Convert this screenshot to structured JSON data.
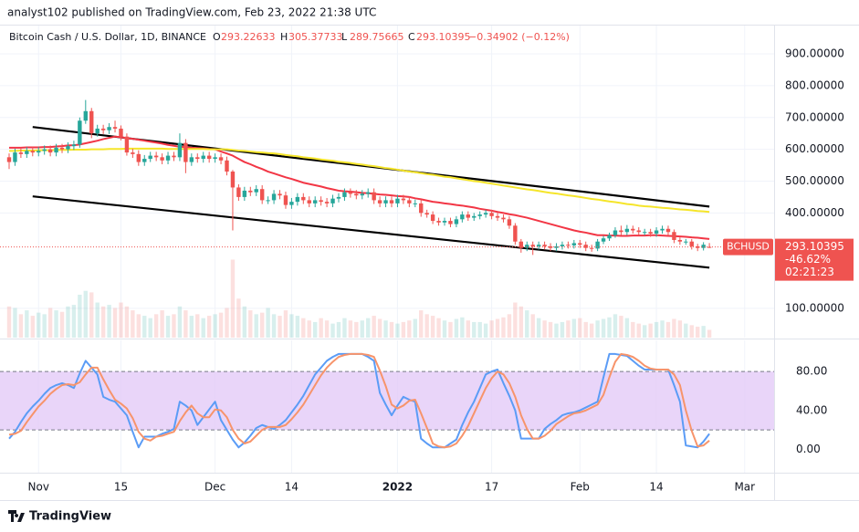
{
  "header": "analyst102 published on TradingView.com, Feb 23, 2022 21:38 UTC",
  "footer": "TradingView",
  "chart_data": [
    {
      "type": "candlestick",
      "title": "Bitcoin Cash / U.S. Dollar, 1D, BINANCE",
      "symbol": "BCHUSD",
      "ohlc_labels": [
        "O",
        "H",
        "L",
        "C"
      ],
      "change_label": "−0.34902 (−0.12%)",
      "change_percent": "-46.62%",
      "countdown": "02:21:23",
      "up_color": "#26a69a",
      "down_color": "#ef5350",
      "open": [
        575,
        560,
        590,
        585,
        595,
        590,
        595,
        600,
        590,
        605,
        600,
        610,
        615,
        690,
        720,
        650,
        665,
        660,
        670,
        665,
        640,
        590,
        585,
        560,
        570,
        580,
        575,
        565,
        580,
        575,
        620,
        560,
        575,
        570,
        580,
        570,
        575,
        565,
        530,
        480,
        450,
        470,
        465,
        475,
        440,
        440,
        460,
        455,
        425,
        435,
        450,
        440,
        430,
        440,
        435,
        430,
        445,
        450,
        465,
        460,
        455,
        460,
        465,
        440,
        430,
        440,
        430,
        445,
        440,
        430,
        430,
        400,
        395,
        375,
        370,
        375,
        365,
        380,
        395,
        385,
        390,
        395,
        400,
        390,
        385,
        380,
        360,
        310,
        290,
        300,
        295,
        300,
        295,
        290,
        295,
        300,
        298,
        305,
        300,
        290,
        288,
        310,
        320,
        330,
        345,
        340,
        350,
        345,
        340,
        340,
        335,
        345,
        350,
        340,
        315,
        310,
        310,
        295,
        290,
        293.22633
      ],
      "high": [
        587,
        602,
        602,
        607,
        607,
        607,
        612,
        612,
        617,
        617,
        622,
        627,
        700,
        755,
        730,
        677,
        677,
        682,
        690,
        675,
        650,
        602,
        597,
        582,
        592,
        592,
        587,
        592,
        592,
        650,
        632,
        587,
        587,
        592,
        592,
        587,
        587,
        577,
        535,
        490,
        482,
        482,
        487,
        487,
        452,
        472,
        472,
        467,
        447,
        462,
        462,
        452,
        452,
        452,
        447,
        457,
        462,
        477,
        477,
        472,
        472,
        477,
        477,
        452,
        452,
        452,
        457,
        457,
        452,
        442,
        442,
        410,
        405,
        385,
        385,
        385,
        390,
        405,
        405,
        400,
        405,
        410,
        410,
        400,
        395,
        390,
        368,
        318,
        310,
        310,
        310,
        310,
        305,
        305,
        310,
        310,
        315,
        315,
        310,
        300,
        318,
        328,
        338,
        355,
        360,
        362,
        360,
        355,
        350,
        350,
        355,
        360,
        360,
        348,
        323,
        318,
        318,
        303,
        308,
        305.37733
      ],
      "low": [
        538,
        548,
        573,
        573,
        578,
        578,
        583,
        578,
        578,
        588,
        588,
        598,
        605,
        680,
        635,
        640,
        648,
        648,
        653,
        628,
        580,
        573,
        548,
        548,
        560,
        563,
        553,
        553,
        563,
        563,
        525,
        548,
        558,
        558,
        558,
        558,
        553,
        518,
        345,
        438,
        438,
        453,
        453,
        428,
        428,
        428,
        443,
        413,
        413,
        423,
        428,
        418,
        418,
        423,
        418,
        418,
        433,
        438,
        448,
        443,
        443,
        448,
        428,
        418,
        418,
        418,
        418,
        428,
        418,
        418,
        388,
        385,
        365,
        360,
        360,
        355,
        355,
        370,
        375,
        375,
        380,
        385,
        380,
        375,
        370,
        350,
        300,
        275,
        280,
        268,
        285,
        285,
        280,
        280,
        285,
        288,
        288,
        290,
        280,
        278,
        280,
        302,
        312,
        322,
        330,
        330,
        335,
        330,
        330,
        325,
        325,
        335,
        330,
        305,
        300,
        300,
        285,
        280,
        282,
        289.75665
      ],
      "close": [
        560,
        590,
        585,
        595,
        590,
        595,
        600,
        590,
        605,
        600,
        610,
        615,
        690,
        720,
        650,
        665,
        660,
        670,
        665,
        640,
        590,
        585,
        560,
        570,
        580,
        575,
        565,
        580,
        575,
        620,
        560,
        575,
        570,
        580,
        570,
        575,
        565,
        530,
        480,
        450,
        470,
        465,
        475,
        440,
        440,
        460,
        455,
        425,
        435,
        450,
        440,
        430,
        440,
        435,
        430,
        445,
        450,
        465,
        460,
        455,
        460,
        465,
        440,
        430,
        440,
        430,
        445,
        440,
        430,
        430,
        400,
        395,
        375,
        370,
        375,
        365,
        380,
        395,
        385,
        390,
        395,
        400,
        390,
        385,
        380,
        360,
        310,
        290,
        300,
        295,
        300,
        295,
        290,
        295,
        300,
        298,
        305,
        300,
        290,
        288,
        310,
        320,
        330,
        345,
        340,
        350,
        345,
        340,
        340,
        335,
        345,
        350,
        340,
        315,
        310,
        310,
        295,
        290,
        300,
        293.10395
      ],
      "volume": [
        40,
        38,
        30,
        35,
        28,
        32,
        30,
        38,
        35,
        33,
        40,
        42,
        55,
        60,
        58,
        45,
        40,
        42,
        38,
        45,
        40,
        35,
        30,
        28,
        25,
        30,
        35,
        28,
        30,
        40,
        35,
        28,
        30,
        25,
        28,
        30,
        32,
        38,
        100,
        50,
        40,
        35,
        30,
        32,
        38,
        30,
        28,
        35,
        30,
        28,
        25,
        22,
        20,
        25,
        22,
        18,
        20,
        25,
        22,
        20,
        22,
        25,
        28,
        24,
        22,
        20,
        18,
        20,
        22,
        24,
        35,
        30,
        28,
        25,
        22,
        20,
        24,
        26,
        22,
        20,
        20,
        18,
        22,
        24,
        26,
        30,
        45,
        40,
        35,
        30,
        25,
        22,
        20,
        18,
        20,
        22,
        24,
        25,
        20,
        18,
        22,
        24,
        26,
        30,
        28,
        25,
        20,
        18,
        16,
        18,
        20,
        22,
        20,
        24,
        22,
        18,
        16,
        14,
        15,
        10
      ],
      "volume_ylim": [
        0,
        400
      ],
      "series": [
        {
          "color": "#f23645",
          "values": [
            605,
            605,
            605,
            606,
            606,
            606,
            607,
            607,
            609,
            610,
            612,
            613,
            615,
            619,
            623,
            627,
            632,
            636,
            640,
            638,
            635,
            633,
            630,
            627,
            624,
            621,
            618,
            614,
            611,
            608,
            607,
            605,
            604,
            603,
            601,
            600,
            593,
            587,
            580,
            570,
            560,
            553,
            545,
            538,
            530,
            524,
            518,
            512,
            507,
            501,
            495,
            491,
            487,
            483,
            478,
            474,
            470,
            468,
            467,
            465,
            463,
            462,
            460,
            458,
            457,
            455,
            453,
            452,
            450,
            446,
            443,
            439,
            435,
            433,
            430,
            428,
            425,
            423,
            420,
            417,
            413,
            410,
            407,
            403,
            400,
            396,
            393,
            389,
            385,
            380,
            375,
            370,
            365,
            360,
            355,
            350,
            345,
            341,
            338,
            334,
            330,
            330,
            329,
            329,
            328,
            328,
            329,
            329,
            329,
            330,
            330,
            329,
            328,
            327,
            326,
            325,
            323,
            322,
            320,
            318
          ]
        },
        {
          "color": "#f5e52a",
          "values": [
            595,
            595,
            596,
            596,
            596,
            597,
            597,
            597,
            598,
            598,
            598,
            599,
            599,
            599,
            600,
            600,
            600,
            601,
            601,
            601,
            602,
            602,
            602,
            602,
            602,
            602,
            602,
            601,
            601,
            601,
            601,
            601,
            601,
            601,
            600,
            600,
            600,
            600,
            598,
            596,
            595,
            593,
            591,
            590,
            588,
            587,
            585,
            582,
            580,
            578,
            575,
            573,
            571,
            568,
            566,
            564,
            561,
            559,
            557,
            554,
            552,
            549,
            547,
            544,
            541,
            539,
            536,
            533,
            530,
            528,
            525,
            522,
            520,
            517,
            514,
            512,
            509,
            506,
            503,
            500,
            498,
            495,
            492,
            489,
            486,
            483,
            480,
            477,
            474,
            472,
            469,
            466,
            463,
            461,
            458,
            455,
            453,
            450,
            447,
            444,
            442,
            439,
            436,
            434,
            431,
            428,
            426,
            423,
            421,
            420,
            418,
            416,
            415,
            413,
            411,
            410,
            408,
            406,
            405,
            403
          ]
        }
      ],
      "trend_lines": [
        {
          "x": [
            4,
            119
          ],
          "y": [
            670,
            420
          ]
        },
        {
          "x": [
            4,
            119
          ],
          "y": [
            452,
            228
          ]
        }
      ],
      "ylim": [
        8,
        989
      ],
      "yticks": [
        {
          "value": 900,
          "label": "900.00000"
        },
        {
          "value": 800,
          "label": "800.00000"
        },
        {
          "value": 700,
          "label": "700.00000"
        },
        {
          "value": 600,
          "label": "600.00000"
        },
        {
          "value": 500,
          "label": "500.00000"
        },
        {
          "value": 400,
          "label": "400.00000"
        },
        {
          "value": 100,
          "label": "100.00000"
        }
      ],
      "xlim": [
        0,
        130
      ],
      "grid": true
    },
    {
      "type": "line",
      "series": [
        {
          "color": "#5b9cf6",
          "values": [
            11,
            18,
            28,
            37,
            44,
            50,
            57,
            63,
            66,
            68,
            66,
            63,
            78,
            91,
            84,
            77,
            54,
            51,
            49,
            42,
            35,
            18,
            2,
            13,
            13,
            13,
            16,
            18,
            21,
            49,
            45,
            40,
            25,
            33,
            41,
            49,
            30,
            20,
            10,
            2,
            7,
            14,
            22,
            25,
            23,
            21,
            25,
            30,
            38,
            46,
            55,
            66,
            77,
            84,
            91,
            95,
            98,
            98,
            98,
            98,
            98,
            95,
            91,
            58,
            46,
            35,
            45,
            54,
            51,
            49,
            11,
            6,
            2,
            2,
            2,
            6,
            10,
            25,
            38,
            49,
            63,
            77,
            80,
            82,
            68,
            55,
            40,
            11,
            11,
            11,
            11,
            21,
            26,
            30,
            35,
            37,
            38,
            40,
            43,
            46,
            49,
            74,
            98,
            98,
            97,
            96,
            91,
            86,
            82,
            82,
            82,
            82,
            82,
            66,
            49,
            4,
            3,
            2,
            8,
            16
          ]
        },
        {
          "color": "#f7946b",
          "values": [
            15,
            16,
            19,
            28,
            36,
            44,
            50,
            57,
            62,
            66,
            67,
            66,
            69,
            77,
            84,
            84,
            72,
            61,
            51,
            47,
            42,
            32,
            18,
            11,
            9,
            13,
            14,
            16,
            18,
            29,
            38,
            45,
            37,
            33,
            33,
            41,
            40,
            33,
            20,
            11,
            6,
            8,
            14,
            20,
            23,
            23,
            23,
            25,
            31,
            38,
            46,
            56,
            66,
            76,
            84,
            90,
            95,
            97,
            98,
            98,
            98,
            97,
            95,
            81,
            65,
            46,
            42,
            45,
            50,
            51,
            37,
            22,
            6,
            3,
            2,
            3,
            6,
            14,
            24,
            37,
            50,
            63,
            73,
            80,
            77,
            68,
            54,
            35,
            21,
            11,
            11,
            14,
            19,
            26,
            30,
            34,
            37,
            38,
            40,
            43,
            46,
            56,
            74,
            90,
            98,
            97,
            95,
            91,
            86,
            83,
            82,
            82,
            82,
            77,
            66,
            40,
            19,
            3,
            4,
            9
          ]
        }
      ],
      "band": [
        20,
        80
      ],
      "band_color": "#e3cbf8",
      "ylim": [
        -24,
        112
      ],
      "yticks": [
        {
          "value": 80,
          "label": "80.00"
        },
        {
          "value": 40,
          "label": "40.00"
        },
        {
          "value": 0,
          "label": "0.00"
        }
      ],
      "xlim": [
        0,
        130
      ],
      "xticks": [
        {
          "value": 5,
          "label": "Nov"
        },
        {
          "value": 19,
          "label": "15"
        },
        {
          "value": 35,
          "label": "Dec"
        },
        {
          "value": 48,
          "label": "14"
        },
        {
          "value": 66,
          "label": "2022",
          "bold": true
        },
        {
          "value": 82,
          "label": "17"
        },
        {
          "value": 97,
          "label": "Feb"
        },
        {
          "value": 110,
          "label": "14"
        },
        {
          "value": 125,
          "label": "Mar"
        }
      ],
      "grid": true
    }
  ]
}
